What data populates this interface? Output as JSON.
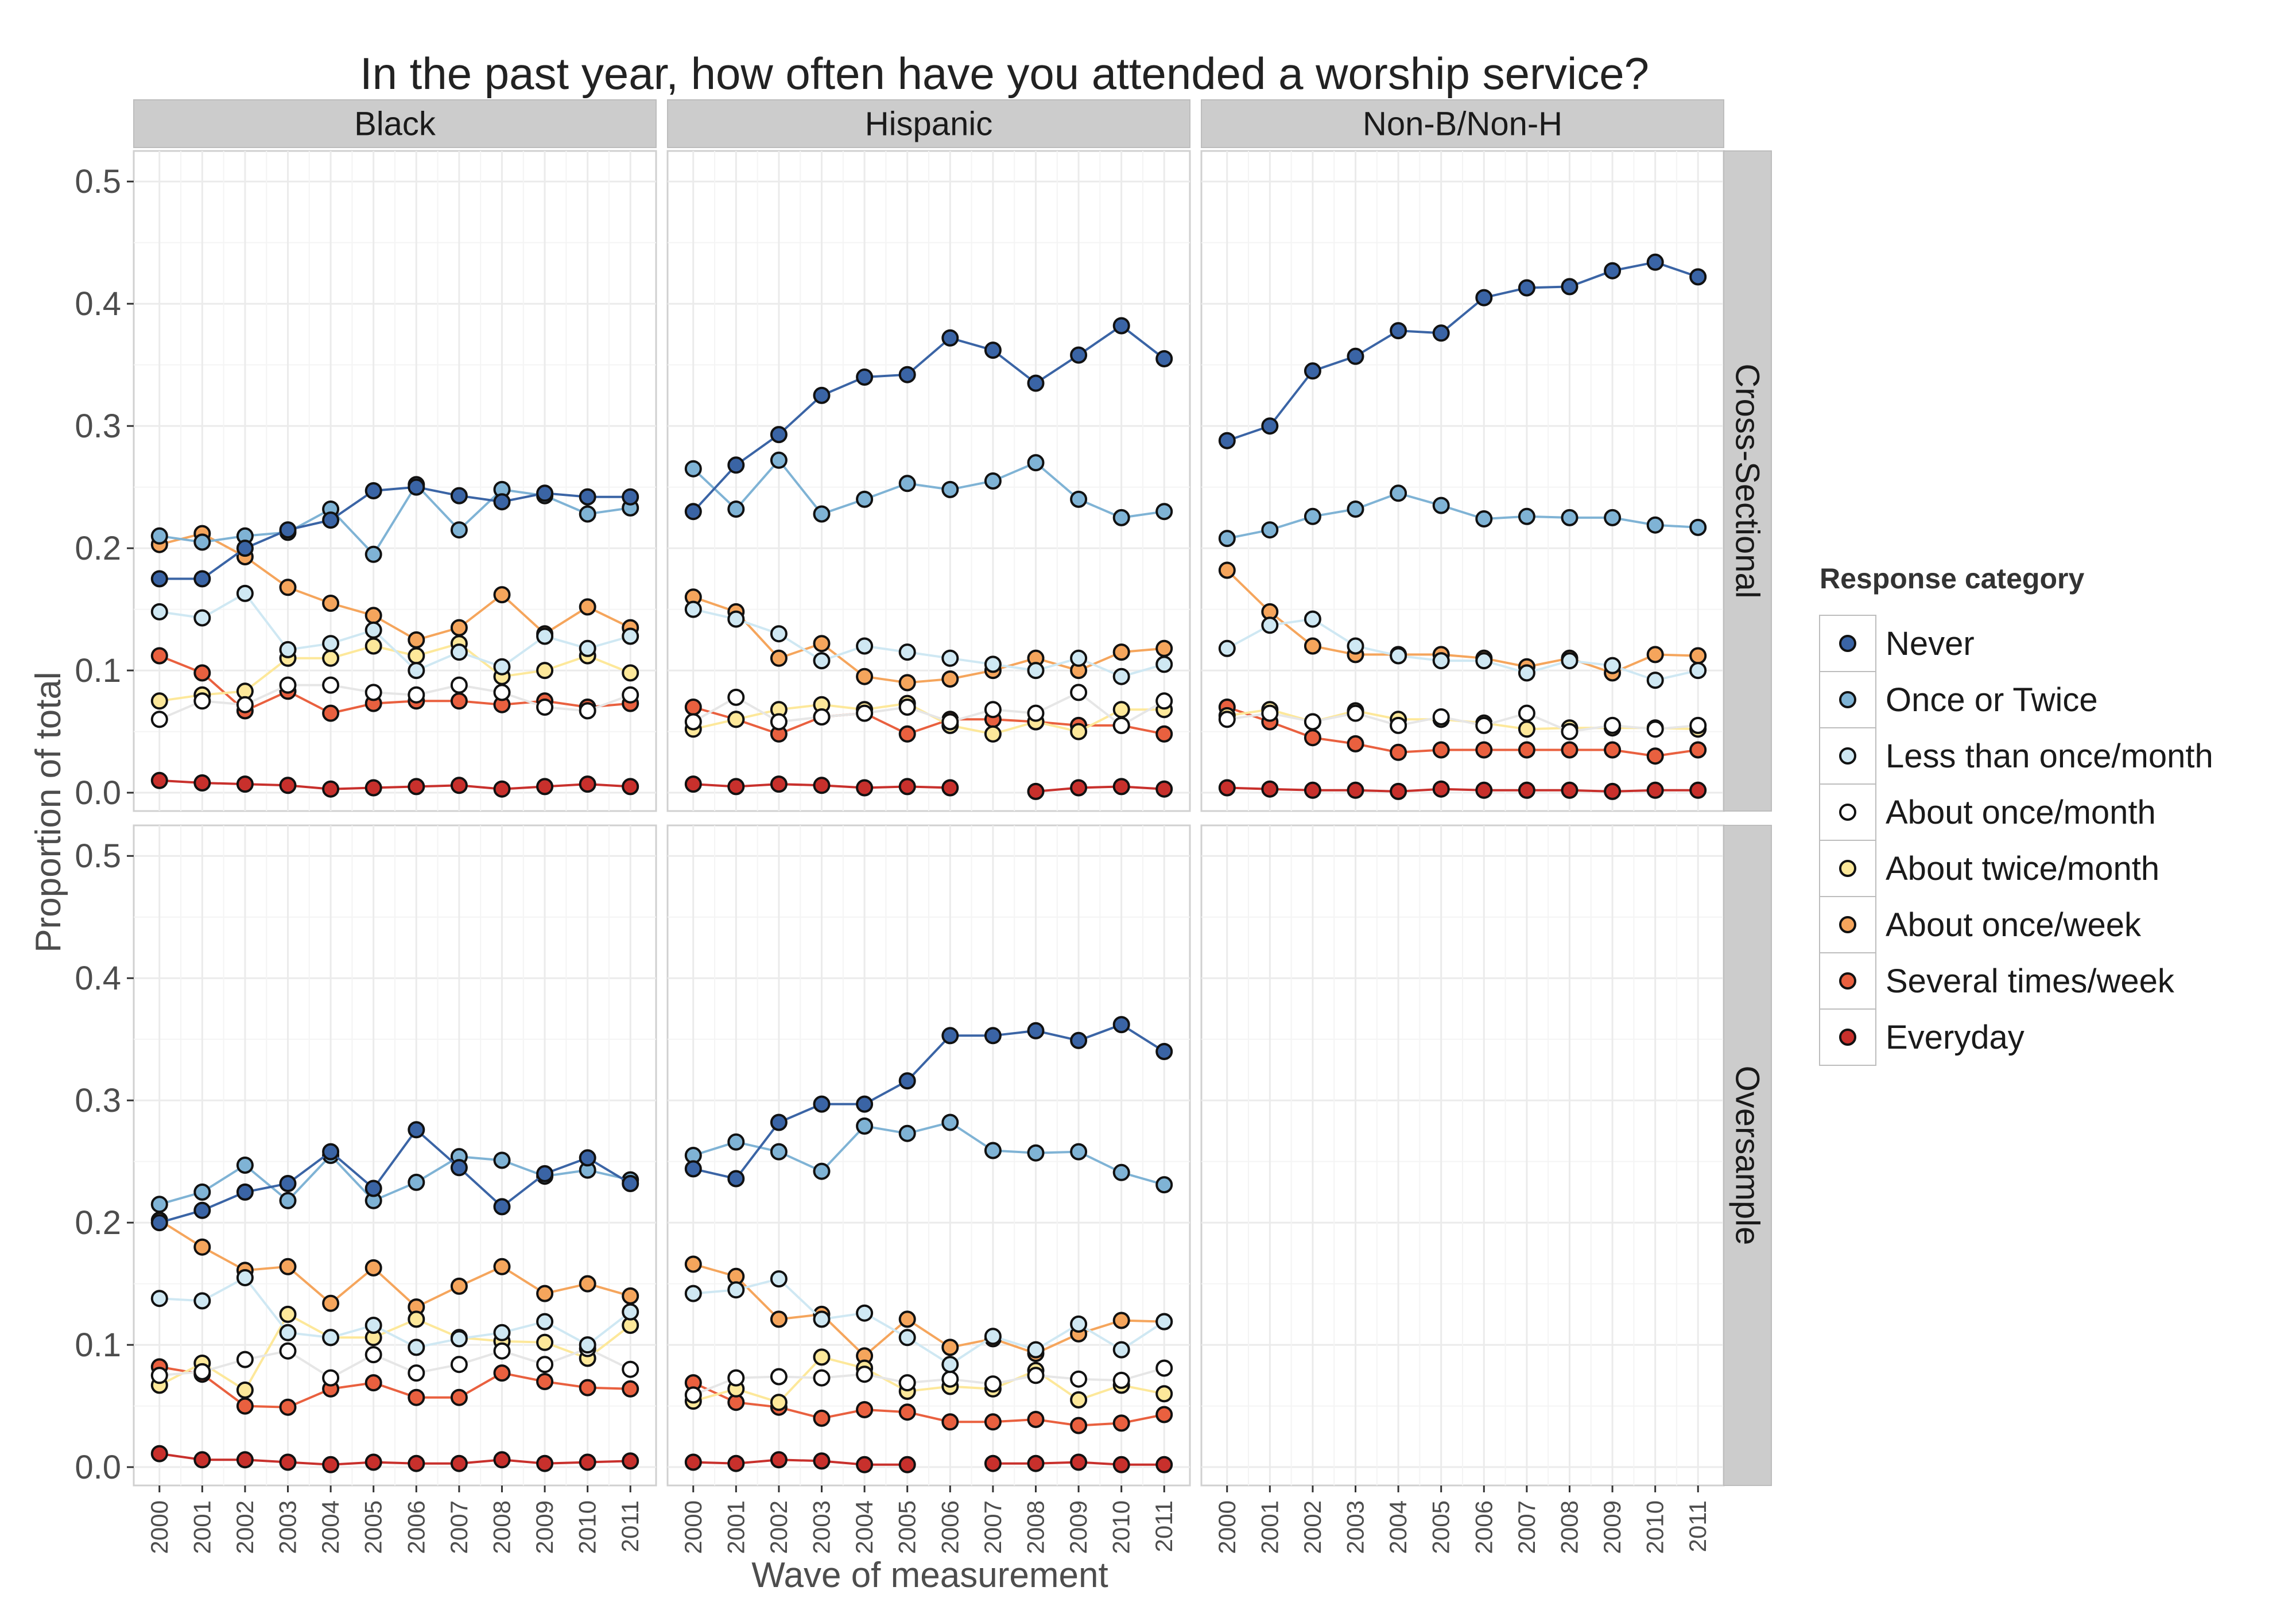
{
  "chart_data": {
    "type": "line",
    "title": "In the past year, how often have you attended a worship service?",
    "xlabel": "Wave of measurement",
    "ylabel": "Proportion of total",
    "ylim": [
      -0.015,
      0.525
    ],
    "yticks": [
      "0.0",
      "0.1",
      "0.2",
      "0.3",
      "0.4",
      "0.5"
    ],
    "x": [
      "2000",
      "2001",
      "2002",
      "2003",
      "2004",
      "2005",
      "2006",
      "2007",
      "2008",
      "2009",
      "2010",
      "2011"
    ],
    "column_facets": [
      "Black",
      "Hispanic",
      "Non-B/Non-H"
    ],
    "row_facets": [
      "Cross-Sectional",
      "Oversample"
    ],
    "grid": true,
    "legend": {
      "title": "Response category",
      "position": "right",
      "entries": [
        "Never",
        "Once or Twice",
        "Less than once/month",
        "About once/month",
        "About twice/month",
        "About once/week",
        "Several times/week",
        "Everyday"
      ]
    },
    "colors": {
      "Never": "#3a64a5",
      "Once or Twice": "#7fb3d5",
      "Less than once/month": "#cfe8f3",
      "About once/month": "#ffffff",
      "About twice/month": "#fde89a",
      "About once/week": "#f5a55c",
      "Several times/week": "#e9603f",
      "Everyday": "#c8302c"
    },
    "panels": [
      {
        "column": "Black",
        "row": "Cross-Sectional",
        "series": [
          {
            "name": "Never",
            "values": [
              0.175,
              0.175,
              0.2,
              0.215,
              0.223,
              0.247,
              0.25,
              0.243,
              0.238,
              0.245,
              0.242,
              0.242
            ]
          },
          {
            "name": "Once or Twice",
            "values": [
              0.21,
              0.205,
              0.21,
              0.213,
              0.232,
              0.195,
              0.252,
              0.215,
              0.248,
              0.243,
              0.228,
              0.233
            ]
          },
          {
            "name": "Less than once/month",
            "values": [
              0.148,
              0.143,
              0.163,
              0.117,
              0.122,
              0.133,
              0.1,
              0.115,
              0.103,
              0.128,
              0.118,
              0.128
            ]
          },
          {
            "name": "About once/month",
            "values": [
              0.06,
              0.075,
              0.072,
              0.088,
              0.088,
              0.082,
              0.08,
              0.088,
              0.082,
              0.07,
              0.067,
              0.08
            ]
          },
          {
            "name": "About twice/month",
            "values": [
              0.075,
              0.08,
              0.083,
              0.11,
              0.11,
              0.12,
              0.112,
              0.122,
              0.095,
              0.1,
              0.112,
              0.098
            ]
          },
          {
            "name": "About once/week",
            "values": [
              0.203,
              0.212,
              0.193,
              0.168,
              0.155,
              0.145,
              0.125,
              0.135,
              0.162,
              0.13,
              0.152,
              0.135
            ]
          },
          {
            "name": "Several times/week",
            "values": [
              0.112,
              0.098,
              0.067,
              0.083,
              0.065,
              0.073,
              0.075,
              0.075,
              0.072,
              0.075,
              0.07,
              0.073
            ]
          },
          {
            "name": "Everyday",
            "values": [
              0.01,
              0.008,
              0.007,
              0.006,
              0.003,
              0.004,
              0.005,
              0.006,
              0.003,
              0.005,
              0.007,
              0.005
            ]
          }
        ]
      },
      {
        "column": "Hispanic",
        "row": "Cross-Sectional",
        "series": [
          {
            "name": "Never",
            "values": [
              0.23,
              0.268,
              0.293,
              0.325,
              0.34,
              0.342,
              0.372,
              0.362,
              0.335,
              0.358,
              0.382,
              0.355
            ]
          },
          {
            "name": "Once or Twice",
            "values": [
              0.265,
              0.232,
              0.272,
              0.228,
              0.24,
              0.253,
              0.248,
              0.255,
              0.27,
              0.24,
              0.225,
              0.23
            ]
          },
          {
            "name": "Less than once/month",
            "values": [
              0.15,
              0.142,
              0.13,
              0.108,
              0.12,
              0.115,
              0.11,
              0.105,
              0.1,
              0.11,
              0.095,
              0.105
            ]
          },
          {
            "name": "About once/month",
            "values": [
              0.058,
              0.078,
              0.058,
              0.062,
              0.065,
              0.07,
              0.058,
              0.068,
              0.065,
              0.082,
              0.055,
              0.075
            ]
          },
          {
            "name": "About twice/month",
            "values": [
              0.052,
              0.06,
              0.068,
              0.072,
              0.068,
              0.073,
              0.055,
              0.048,
              0.058,
              0.05,
              0.068,
              0.068
            ]
          },
          {
            "name": "About once/week",
            "values": [
              0.16,
              0.148,
              0.11,
              0.122,
              0.095,
              0.09,
              0.093,
              0.1,
              0.11,
              0.1,
              0.115,
              0.118
            ]
          },
          {
            "name": "Several times/week",
            "values": [
              0.07,
              0.06,
              0.048,
              0.062,
              0.065,
              0.048,
              0.06,
              0.06,
              0.058,
              0.055,
              0.055,
              0.048
            ]
          },
          {
            "name": "Everyday",
            "values": [
              0.007,
              0.005,
              0.007,
              0.006,
              0.004,
              0.005,
              0.004,
              null,
              0.001,
              0.004,
              0.005,
              0.003
            ]
          }
        ]
      },
      {
        "column": "Non-B/Non-H",
        "row": "Cross-Sectional",
        "series": [
          {
            "name": "Never",
            "values": [
              0.288,
              0.3,
              0.345,
              0.357,
              0.378,
              0.376,
              0.405,
              0.413,
              0.414,
              0.427,
              0.434,
              0.422
            ]
          },
          {
            "name": "Once or Twice",
            "values": [
              0.208,
              0.215,
              0.226,
              0.232,
              0.245,
              0.235,
              0.224,
              0.226,
              0.225,
              0.225,
              0.219,
              0.217
            ]
          },
          {
            "name": "Less than once/month",
            "values": [
              0.118,
              0.137,
              0.142,
              0.12,
              0.112,
              0.108,
              0.108,
              0.098,
              0.108,
              0.104,
              0.092,
              0.1
            ]
          },
          {
            "name": "About once/month",
            "values": [
              0.06,
              0.065,
              0.058,
              0.065,
              0.055,
              0.062,
              0.055,
              0.065,
              0.05,
              0.055,
              0.052,
              0.055
            ]
          },
          {
            "name": "About twice/month",
            "values": [
              0.063,
              0.068,
              0.058,
              0.067,
              0.06,
              0.06,
              0.057,
              0.052,
              0.053,
              0.053,
              0.053,
              0.052
            ]
          },
          {
            "name": "About once/week",
            "values": [
              0.182,
              0.148,
              0.12,
              0.113,
              0.113,
              0.113,
              0.11,
              0.103,
              0.11,
              0.098,
              0.113,
              0.112
            ]
          },
          {
            "name": "Several times/week",
            "values": [
              0.07,
              0.058,
              0.045,
              0.04,
              0.033,
              0.035,
              0.035,
              0.035,
              0.035,
              0.035,
              0.03,
              0.035
            ]
          },
          {
            "name": "Everyday",
            "values": [
              0.004,
              0.003,
              0.002,
              0.002,
              0.001,
              0.003,
              0.002,
              0.002,
              0.002,
              0.001,
              0.002,
              0.002
            ]
          }
        ]
      },
      {
        "column": "Black",
        "row": "Oversample",
        "series": [
          {
            "name": "Never",
            "values": [
              0.2,
              0.21,
              0.225,
              0.232,
              0.258,
              0.228,
              0.276,
              0.245,
              0.213,
              0.24,
              0.253,
              0.232
            ]
          },
          {
            "name": "Once or Twice",
            "values": [
              0.215,
              0.225,
              0.247,
              0.218,
              0.255,
              0.218,
              0.233,
              0.254,
              0.251,
              0.238,
              0.243,
              0.235
            ]
          },
          {
            "name": "Less than once/month",
            "values": [
              0.138,
              0.136,
              0.155,
              0.11,
              0.106,
              0.116,
              0.098,
              0.105,
              0.11,
              0.119,
              0.1,
              0.127
            ]
          },
          {
            "name": "About once/month",
            "values": [
              0.075,
              0.078,
              0.088,
              0.095,
              0.073,
              0.092,
              0.077,
              0.084,
              0.095,
              0.084,
              0.097,
              0.08
            ]
          },
          {
            "name": "About twice/month",
            "values": [
              0.067,
              0.085,
              0.063,
              0.125,
              0.106,
              0.106,
              0.121,
              0.106,
              0.103,
              0.102,
              0.089,
              0.116
            ]
          },
          {
            "name": "About once/week",
            "values": [
              0.202,
              0.18,
              0.161,
              0.164,
              0.134,
              0.163,
              0.131,
              0.148,
              0.164,
              0.142,
              0.15,
              0.14
            ]
          },
          {
            "name": "Several times/week",
            "values": [
              0.082,
              0.076,
              0.05,
              0.049,
              0.064,
              0.069,
              0.057,
              0.057,
              0.077,
              0.07,
              0.065,
              0.064
            ]
          },
          {
            "name": "Everyday",
            "values": [
              0.011,
              0.006,
              0.006,
              0.004,
              0.002,
              0.004,
              0.003,
              0.003,
              0.006,
              0.003,
              0.004,
              0.005
            ]
          }
        ]
      },
      {
        "column": "Hispanic",
        "row": "Oversample",
        "series": [
          {
            "name": "Never",
            "values": [
              0.244,
              0.236,
              0.282,
              0.297,
              0.297,
              0.316,
              0.353,
              0.353,
              0.357,
              0.349,
              0.362,
              0.34
            ]
          },
          {
            "name": "Once or Twice",
            "values": [
              0.255,
              0.266,
              0.258,
              0.242,
              0.279,
              0.273,
              0.282,
              0.259,
              0.257,
              0.258,
              0.241,
              0.231
            ]
          },
          {
            "name": "Less than once/month",
            "values": [
              0.142,
              0.145,
              0.154,
              0.121,
              0.126,
              0.106,
              0.084,
              0.107,
              0.096,
              0.117,
              0.096,
              0.119
            ]
          },
          {
            "name": "About once/month",
            "values": [
              0.059,
              0.073,
              0.074,
              0.073,
              0.076,
              0.069,
              0.072,
              0.068,
              0.075,
              0.072,
              0.071,
              0.081
            ]
          },
          {
            "name": "About twice/month",
            "values": [
              0.054,
              0.064,
              0.053,
              0.09,
              0.081,
              0.062,
              0.066,
              0.064,
              0.079,
              0.055,
              0.067,
              0.06
            ]
          },
          {
            "name": "About once/week",
            "values": [
              0.166,
              0.156,
              0.121,
              0.125,
              0.091,
              0.121,
              0.098,
              0.105,
              0.093,
              0.109,
              0.12,
              0.119
            ]
          },
          {
            "name": "Several times/week",
            "values": [
              0.069,
              0.053,
              0.049,
              0.04,
              0.047,
              0.045,
              0.037,
              0.037,
              0.039,
              0.034,
              0.036,
              0.043
            ]
          },
          {
            "name": "Everyday",
            "values": [
              0.004,
              0.003,
              0.006,
              0.005,
              0.002,
              0.002,
              null,
              0.003,
              0.003,
              0.004,
              0.002,
              0.002
            ]
          }
        ]
      }
    ]
  }
}
